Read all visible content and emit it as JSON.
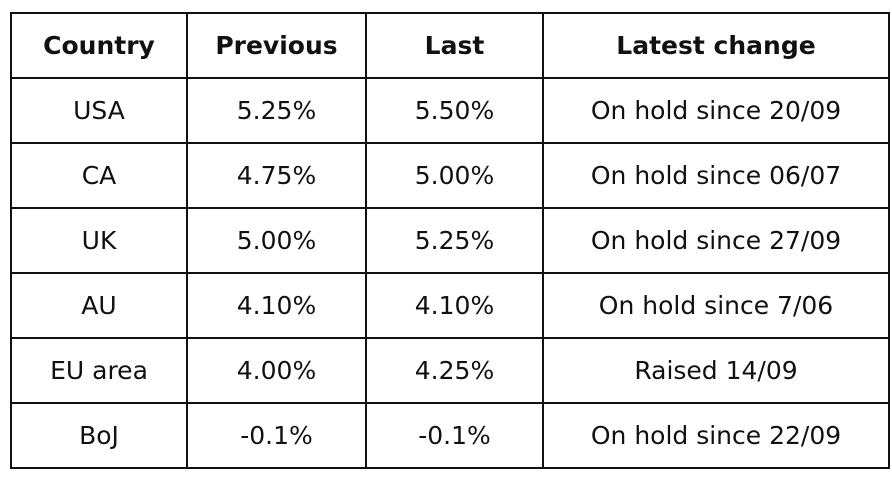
{
  "table": {
    "header": [
      "Country",
      "Previous",
      "Last",
      "Latest change"
    ],
    "rows": [
      [
        "USA",
        "5.25%",
        "5.50%",
        "On hold since 20/09"
      ],
      [
        "CA",
        "4.75%",
        "5.00%",
        "On hold since 06/07"
      ],
      [
        "UK",
        "5.00%",
        "5.25%",
        "On hold since 27/09"
      ],
      [
        "AU",
        "4.10%",
        "4.10%",
        "On hold since 7/06"
      ],
      [
        "EU area",
        "4.00%",
        "4.25%",
        "Raised 14/09"
      ],
      [
        "BoJ",
        "-0.1%",
        "-0.1%",
        "On hold since 22/09"
      ]
    ]
  }
}
